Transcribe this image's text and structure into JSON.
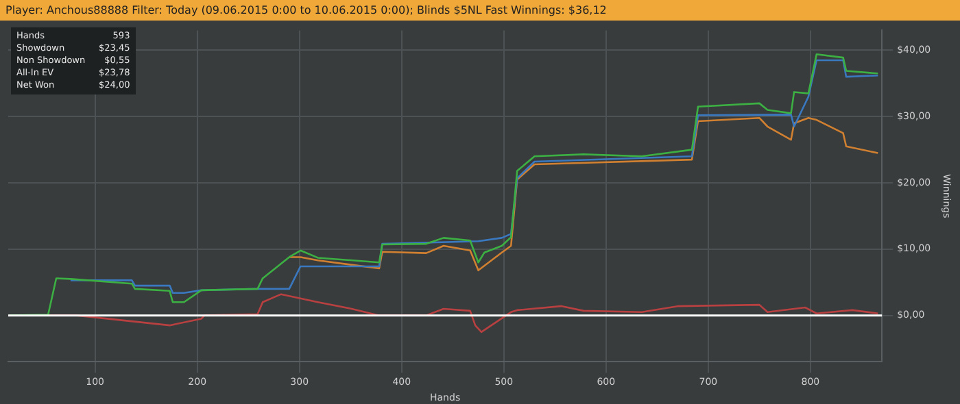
{
  "chart_data": {
    "type": "line",
    "title": "Player: Anchous88888 Filter: Today (09.06.2015 0:00 to 10.06.2015 0:00); Blinds $5NL Fast Winnings: $36,12",
    "xlabel": "Hands",
    "ylabel": "Winnings",
    "annotations": [
      "Hands",
      "593",
      "Showdown",
      "$23,45",
      "Non Showdown",
      "$0,55",
      "All-In EV",
      "$23,78",
      "Net Won",
      "$24,00"
    ],
    "series": [
      {
        "color": "#3cb043",
        "x": [
          16,
          54,
          62,
          76,
          136,
          139,
          173,
          176,
          187,
          204,
          259,
          264,
          290,
          301,
          318,
          378,
          381,
          424,
          441,
          467,
          475,
          481,
          498,
          507,
          513,
          530,
          578,
          635,
          684,
          690,
          750,
          758,
          781,
          784,
          798,
          806,
          832,
          835,
          866
        ],
        "values": [
          0,
          0.1,
          5.6,
          5.5,
          4.8,
          4.0,
          3.7,
          2.0,
          2.0,
          3.8,
          4.0,
          5.6,
          8.8,
          9.8,
          8.7,
          8.0,
          10.7,
          10.8,
          11.7,
          11.3,
          8.0,
          9.5,
          10.5,
          11.8,
          21.8,
          24.0,
          24.3,
          24.0,
          25.0,
          31.5,
          32.0,
          31.0,
          30.5,
          33.7,
          33.5,
          39.4,
          38.9,
          36.9,
          36.5
        ]
      },
      {
        "color": "#3a78c0",
        "x": [
          76,
          136,
          139,
          173,
          176,
          187,
          204,
          259,
          290,
          301,
          378,
          381,
          475,
          498,
          507,
          513,
          530,
          684,
          690,
          781,
          784,
          798,
          806,
          832,
          835,
          866
        ],
        "values": [
          5.3,
          5.3,
          4.5,
          4.5,
          3.4,
          3.4,
          3.8,
          4.0,
          4.0,
          7.4,
          7.4,
          10.8,
          11.2,
          11.7,
          12.3,
          20.7,
          23.2,
          24.0,
          30.2,
          30.3,
          28.5,
          33.0,
          38.5,
          38.5,
          36.0,
          36.2
        ]
      },
      {
        "color": "#d08030",
        "x": [
          290,
          301,
          318,
          378,
          381,
          424,
          441,
          467,
          475,
          481,
          498,
          507,
          513,
          530,
          684,
          690,
          750,
          758,
          781,
          784,
          798,
          806,
          832,
          835,
          866
        ],
        "values": [
          8.8,
          8.8,
          8.3,
          7.1,
          9.6,
          9.4,
          10.5,
          9.8,
          6.8,
          7.5,
          9.5,
          10.5,
          20.5,
          22.8,
          23.5,
          29.3,
          29.8,
          28.5,
          26.5,
          29.0,
          29.8,
          29.5,
          27.5,
          25.5,
          24.5
        ]
      },
      {
        "color": "#b84040",
        "x": [
          16,
          82,
          173,
          204,
          207,
          259,
          264,
          282,
          318,
          351,
          378,
          424,
          441,
          467,
          472,
          478,
          507,
          513,
          556,
          578,
          635,
          671,
          750,
          758,
          795,
          806,
          841,
          866
        ],
        "values": [
          0,
          0,
          -1.5,
          -0.5,
          0,
          0.2,
          2.0,
          3.2,
          2.0,
          1.0,
          0,
          0,
          1.0,
          0.7,
          -1.5,
          -2.5,
          0.5,
          0.8,
          1.4,
          0.7,
          0.5,
          1.4,
          1.6,
          0.5,
          1.2,
          0.3,
          0.8,
          0.3
        ]
      }
    ],
    "xlim": [
      15,
      870
    ],
    "xticks": [
      100,
      200,
      300,
      400,
      500,
      600,
      700,
      800
    ],
    "ylim": [
      -7,
      43
    ],
    "yticks": [
      {
        "value": 0,
        "label": "$0,00"
      },
      {
        "value": 10,
        "label": "$10,00"
      },
      {
        "value": 20,
        "label": "$20,00"
      },
      {
        "value": 30,
        "label": "$30,00"
      },
      {
        "value": 40,
        "label": "$40,00"
      }
    ],
    "ref_lines": [
      {
        "axis": "y",
        "value": 0,
        "color": "#ffffff"
      }
    ],
    "grid": true,
    "legend": false,
    "marker": "none",
    "line_style": "solid"
  }
}
